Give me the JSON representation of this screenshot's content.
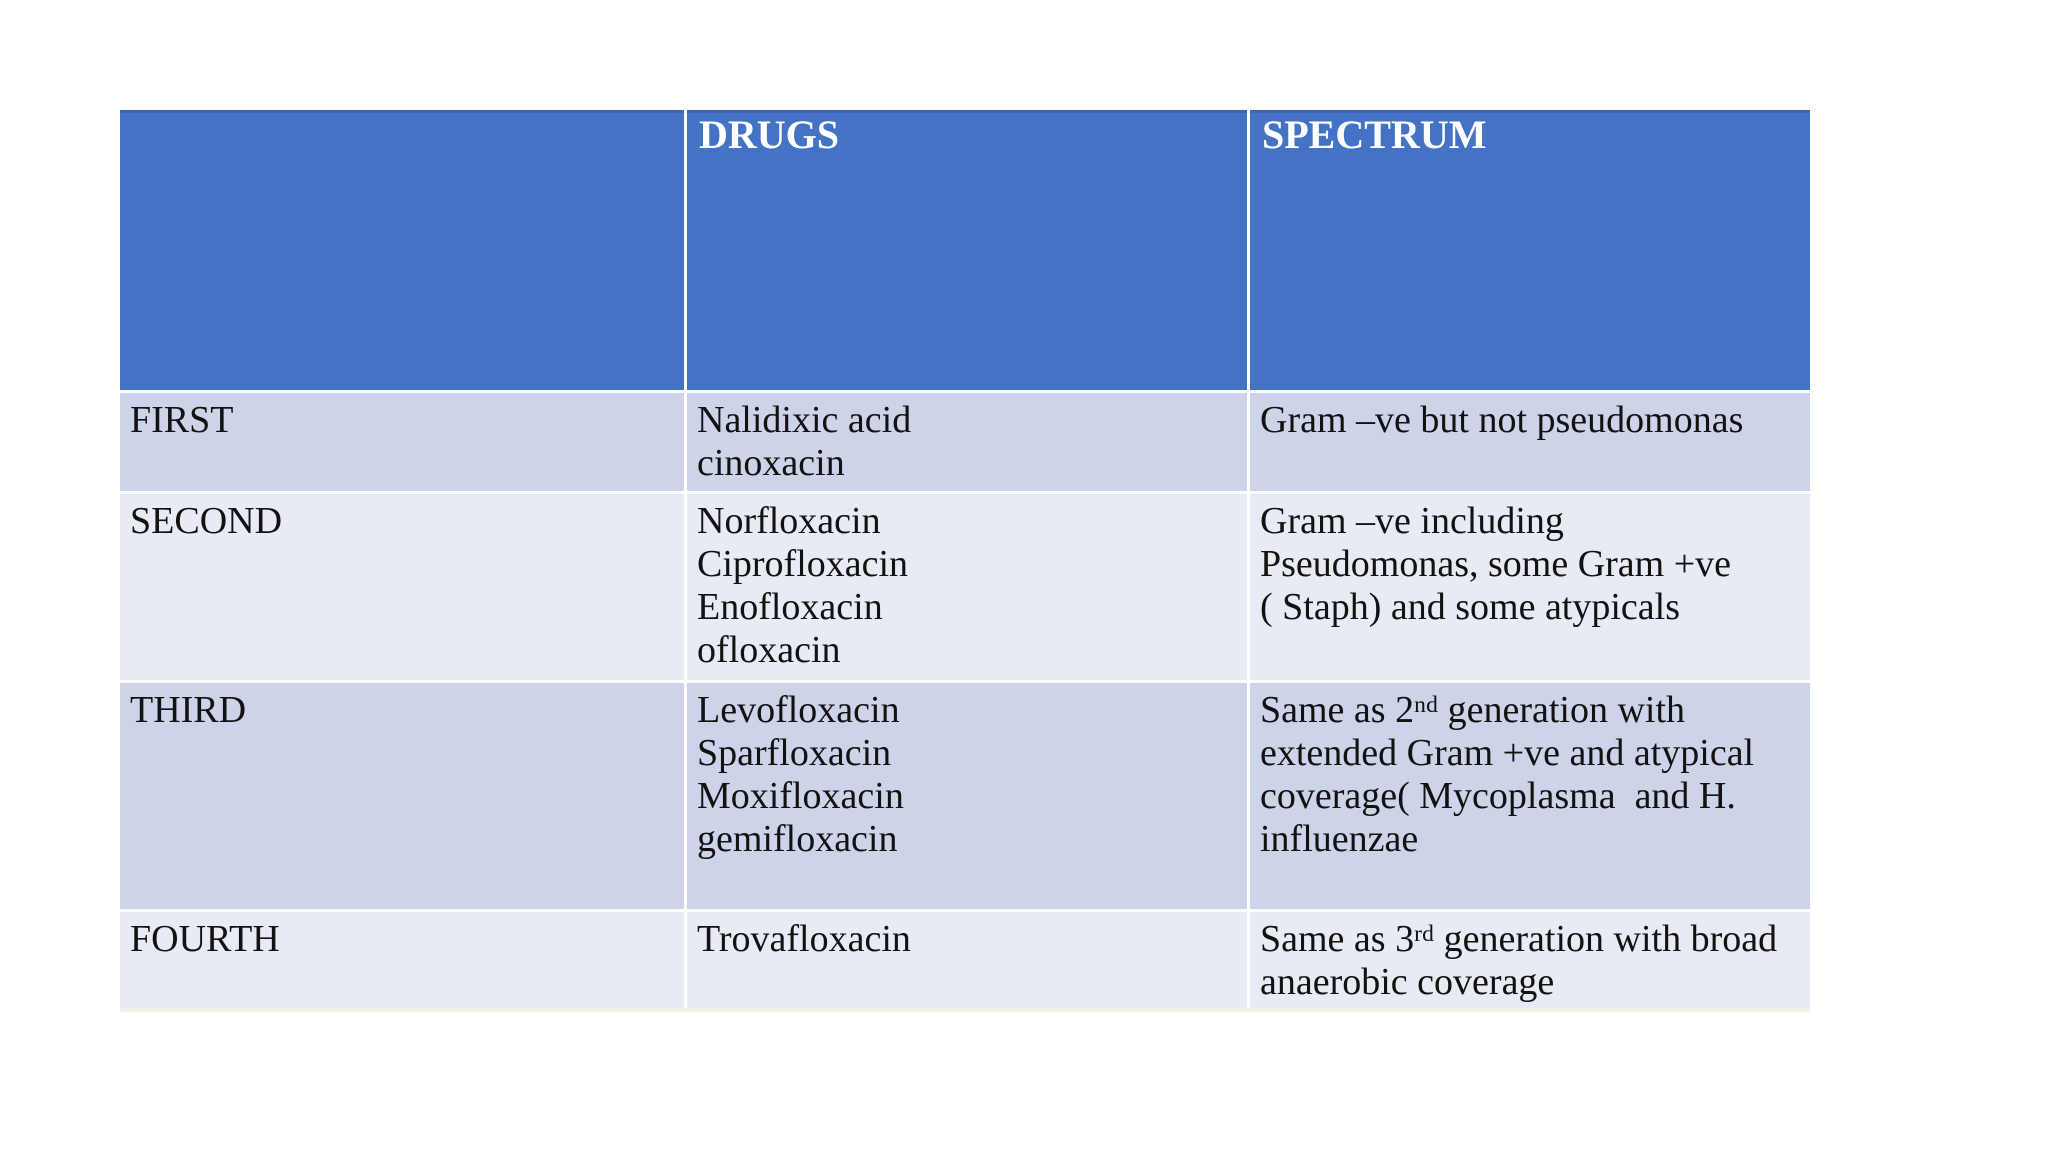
{
  "page": {
    "background": "#ffffff",
    "description_colors": {
      "header_bg": "#4472C4",
      "header_top_border": "#3D66B3",
      "band_dark": "#CDD4E9",
      "band_light": "#E9EBF4",
      "header_text": "#FFFFFF",
      "body_text": "#121212"
    }
  },
  "table": {
    "columns": [
      {
        "key": "generation",
        "label": ""
      },
      {
        "key": "drugs",
        "label": "DRUGS"
      },
      {
        "key": "spectrum",
        "label": "SPECTRUM"
      }
    ],
    "rows": [
      {
        "generation": "FIRST",
        "drugs_lines": [
          "Nalidixic acid",
          "cinoxacin"
        ],
        "spectrum_lines": [
          "Gram –ve but not pseudomonas"
        ]
      },
      {
        "generation": "SECOND",
        "drugs_lines": [
          "Norfloxacin",
          "Ciprofloxacin",
          "Enofloxacin",
          "ofloxacin"
        ],
        "spectrum_lines": [
          "Gram –ve including",
          "Pseudomonas, some Gram +ve",
          "( Staph) and some atypicals"
        ]
      },
      {
        "generation": "THIRD",
        "drugs_lines": [
          "Levofloxacin",
          "Sparfloxacin",
          "Moxifloxacin",
          "gemifloxacin"
        ],
        "spectrum_intro": {
          "pre": "Same as 2",
          "sup": "nd",
          "post": " generation with"
        },
        "spectrum_lines": [
          "extended Gram +ve and atypical",
          "coverage( Mycoplasma  and H.",
          "influenzae"
        ]
      },
      {
        "generation": "FOURTH",
        "drugs_lines": [
          "Trovafloxacin"
        ],
        "spectrum_intro": {
          "pre": "Same as 3",
          "sup": "rd",
          "post": " generation with broad"
        },
        "spectrum_lines": [
          "anaerobic coverage"
        ]
      }
    ]
  }
}
